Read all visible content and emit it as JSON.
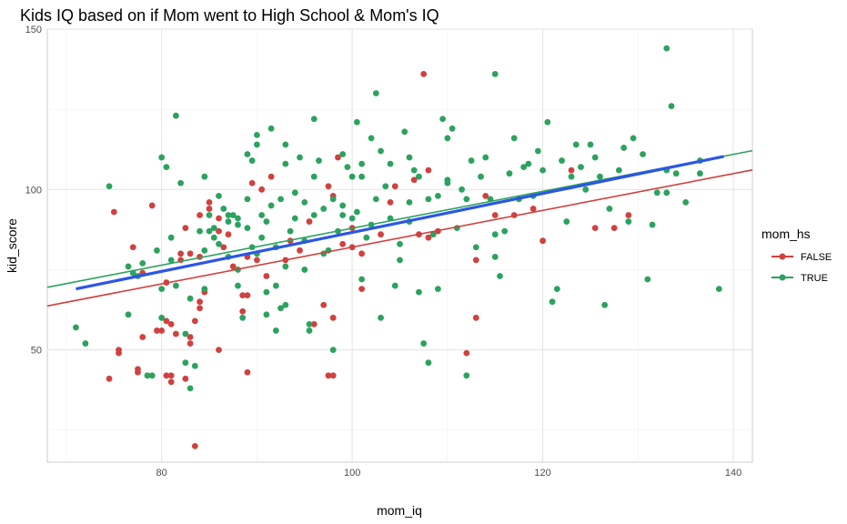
{
  "chart_data": {
    "type": "scatter",
    "title": "Kids IQ based on if Mom went to High School & Mom's IQ",
    "xlabel": "mom_iq",
    "ylabel": "kid_score",
    "xlim": [
      68,
      142
    ],
    "ylim": [
      15,
      150
    ],
    "x_ticks": [
      80,
      100,
      120,
      140
    ],
    "y_ticks": [
      50,
      100,
      150
    ],
    "x_tick_labels": [
      "80",
      "100",
      "120",
      "140"
    ],
    "y_tick_labels": [
      "50",
      "100",
      "150"
    ],
    "grid": true,
    "legend": {
      "title": "mom_hs",
      "placement": "right",
      "entries": [
        {
          "label": "FALSE",
          "color": "#d0413f"
        },
        {
          "label": "TRUE",
          "color": "#2ca25f"
        }
      ]
    },
    "series": [
      {
        "name": "FALSE",
        "color": "#d0413f",
        "points": [
          [
            74.5,
            41
          ],
          [
            75,
            93
          ],
          [
            75.5,
            50
          ],
          [
            75.5,
            49
          ],
          [
            77,
            82
          ],
          [
            77.5,
            44
          ],
          [
            77.5,
            43
          ],
          [
            78,
            54
          ],
          [
            78,
            74
          ],
          [
            79,
            95
          ],
          [
            79.5,
            56
          ],
          [
            80.5,
            42
          ],
          [
            80,
            56
          ],
          [
            80.5,
            59
          ],
          [
            81,
            58
          ],
          [
            81,
            40
          ],
          [
            81,
            42
          ],
          [
            80.5,
            71
          ],
          [
            81.5,
            55
          ],
          [
            82,
            78
          ],
          [
            82,
            80
          ],
          [
            82.5,
            88
          ],
          [
            83,
            80
          ],
          [
            83,
            54
          ],
          [
            83,
            52
          ],
          [
            82.5,
            41
          ],
          [
            83.5,
            59
          ],
          [
            84,
            63
          ],
          [
            84,
            65
          ],
          [
            84,
            79
          ],
          [
            84,
            92
          ],
          [
            84.5,
            68
          ],
          [
            85,
            94
          ],
          [
            85,
            96
          ],
          [
            83.5,
            20
          ],
          [
            86,
            91
          ],
          [
            86,
            87
          ],
          [
            86.5,
            82
          ],
          [
            86,
            50
          ],
          [
            87,
            86
          ],
          [
            87.5,
            76
          ],
          [
            88.5,
            67
          ],
          [
            89,
            67
          ],
          [
            88.5,
            62
          ],
          [
            89,
            43
          ],
          [
            89.5,
            102
          ],
          [
            89,
            79
          ],
          [
            90,
            78
          ],
          [
            90.5,
            100
          ],
          [
            91,
            73
          ],
          [
            91.5,
            104
          ],
          [
            93,
            78
          ],
          [
            93.5,
            84
          ],
          [
            94.5,
            81
          ],
          [
            95.5,
            90
          ],
          [
            96,
            58
          ],
          [
            97,
            64
          ],
          [
            97.5,
            101
          ],
          [
            97.5,
            42
          ],
          [
            98,
            42
          ],
          [
            98,
            98
          ],
          [
            98,
            60
          ],
          [
            98.5,
            110
          ],
          [
            99,
            83
          ],
          [
            100,
            88
          ],
          [
            100,
            82
          ],
          [
            101,
            80
          ],
          [
            101,
            69
          ],
          [
            103,
            86
          ],
          [
            104,
            96
          ],
          [
            104.5,
            101
          ],
          [
            106.5,
            103
          ],
          [
            107,
            86
          ],
          [
            107.5,
            136
          ],
          [
            108,
            106
          ],
          [
            108,
            85
          ],
          [
            109,
            87
          ],
          [
            112,
            49
          ],
          [
            113,
            60
          ],
          [
            113,
            78
          ],
          [
            114,
            98
          ],
          [
            115,
            92
          ],
          [
            117,
            92
          ],
          [
            119,
            94
          ],
          [
            120,
            84
          ],
          [
            123,
            106
          ],
          [
            125.5,
            88
          ],
          [
            127.5,
            88
          ],
          [
            129,
            92
          ]
        ]
      },
      {
        "name": "TRUE",
        "color": "#2ca25f",
        "points": [
          [
            71,
            57
          ],
          [
            72,
            52
          ],
          [
            74.5,
            101
          ],
          [
            76.5,
            76
          ],
          [
            76.5,
            61
          ],
          [
            77,
            74
          ],
          [
            77.5,
            73
          ],
          [
            78,
            77
          ],
          [
            78.5,
            42
          ],
          [
            79.5,
            81
          ],
          [
            79,
            42
          ],
          [
            80,
            110
          ],
          [
            80,
            60
          ],
          [
            80,
            69
          ],
          [
            80.5,
            107
          ],
          [
            81,
            85
          ],
          [
            81,
            78
          ],
          [
            81.5,
            123
          ],
          [
            82,
            102
          ],
          [
            81.5,
            70
          ],
          [
            82.5,
            46
          ],
          [
            82.5,
            55
          ],
          [
            83,
            38
          ],
          [
            83,
            66
          ],
          [
            83.5,
            45
          ],
          [
            84,
            87
          ],
          [
            84.5,
            104
          ],
          [
            84.5,
            81
          ],
          [
            84.5,
            69
          ],
          [
            85,
            87
          ],
          [
            85,
            92
          ],
          [
            85.5,
            88
          ],
          [
            85.5,
            85
          ],
          [
            86,
            98
          ],
          [
            86.5,
            94
          ],
          [
            86,
            83
          ],
          [
            87,
            90
          ],
          [
            87,
            92
          ],
          [
            87.5,
            92
          ],
          [
            87,
            79
          ],
          [
            88,
            91
          ],
          [
            88,
            89
          ],
          [
            88,
            75
          ],
          [
            88,
            70
          ],
          [
            88.5,
            60
          ],
          [
            89,
            111
          ],
          [
            89,
            97
          ],
          [
            89,
            88
          ],
          [
            89.5,
            109
          ],
          [
            89.5,
            82
          ],
          [
            90,
            114
          ],
          [
            90,
            117
          ],
          [
            90,
            80
          ],
          [
            90.5,
            92
          ],
          [
            90.5,
            85
          ],
          [
            91,
            90
          ],
          [
            91,
            68
          ],
          [
            91,
            61
          ],
          [
            91.5,
            95
          ],
          [
            91.5,
            119
          ],
          [
            92,
            82
          ],
          [
            92,
            70
          ],
          [
            92,
            56
          ],
          [
            92.5,
            63
          ],
          [
            92.5,
            97
          ],
          [
            93,
            114
          ],
          [
            93,
            108
          ],
          [
            93,
            76
          ],
          [
            93,
            64
          ],
          [
            93.5,
            87
          ],
          [
            94,
            91
          ],
          [
            94,
            99
          ],
          [
            94.5,
            110
          ],
          [
            95,
            96
          ],
          [
            95,
            84
          ],
          [
            95,
            75
          ],
          [
            95.5,
            56
          ],
          [
            95.5,
            58
          ],
          [
            96,
            122
          ],
          [
            96,
            92
          ],
          [
            96,
            104
          ],
          [
            96.5,
            109
          ],
          [
            97,
            94
          ],
          [
            97,
            80
          ],
          [
            97.5,
            81
          ],
          [
            98,
            97
          ],
          [
            98,
            50
          ],
          [
            98.5,
            87
          ],
          [
            99,
            111
          ],
          [
            99,
            92
          ],
          [
            99,
            95
          ],
          [
            99.5,
            107
          ],
          [
            100,
            91
          ],
          [
            100,
            104
          ],
          [
            100.5,
            93
          ],
          [
            100.5,
            121
          ],
          [
            101,
            108
          ],
          [
            101,
            104
          ],
          [
            101,
            72
          ],
          [
            101.5,
            85
          ],
          [
            102,
            89
          ],
          [
            102,
            116
          ],
          [
            102.5,
            130
          ],
          [
            102.5,
            97
          ],
          [
            103,
            112
          ],
          [
            103,
            60
          ],
          [
            103.5,
            101
          ],
          [
            104,
            91
          ],
          [
            104,
            108
          ],
          [
            104.5,
            70
          ],
          [
            105,
            83
          ],
          [
            105,
            78
          ],
          [
            105.5,
            118
          ],
          [
            106,
            110
          ],
          [
            106,
            90
          ],
          [
            106,
            96
          ],
          [
            106.5,
            106
          ],
          [
            107,
            68
          ],
          [
            107,
            104
          ],
          [
            107.5,
            52
          ],
          [
            108,
            97
          ],
          [
            108,
            46
          ],
          [
            108.5,
            86
          ],
          [
            109,
            98
          ],
          [
            109,
            69
          ],
          [
            109.5,
            122
          ],
          [
            110,
            116
          ],
          [
            110,
            102
          ],
          [
            110,
            103
          ],
          [
            110.5,
            119
          ],
          [
            111,
            88
          ],
          [
            111.5,
            100
          ],
          [
            112,
            97
          ],
          [
            112,
            42
          ],
          [
            112.5,
            109
          ],
          [
            113,
            82
          ],
          [
            113.5,
            104
          ],
          [
            114,
            110
          ],
          [
            114.5,
            97
          ],
          [
            115,
            136
          ],
          [
            115,
            86
          ],
          [
            115,
            79
          ],
          [
            115.5,
            73
          ],
          [
            116,
            87
          ],
          [
            116.5,
            105
          ],
          [
            117,
            116
          ],
          [
            117.5,
            97
          ],
          [
            118,
            107
          ],
          [
            118.5,
            108
          ],
          [
            119,
            98
          ],
          [
            119.5,
            112
          ],
          [
            120,
            106
          ],
          [
            120.5,
            121
          ],
          [
            121,
            65
          ],
          [
            121.5,
            69
          ],
          [
            122,
            109
          ],
          [
            122.5,
            90
          ],
          [
            123,
            104
          ],
          [
            123.5,
            114
          ],
          [
            124,
            107
          ],
          [
            124.5,
            100
          ],
          [
            125,
            114
          ],
          [
            125.5,
            110
          ],
          [
            126,
            104
          ],
          [
            126.5,
            64
          ],
          [
            127,
            94
          ],
          [
            128,
            106
          ],
          [
            128.5,
            113
          ],
          [
            129,
            90
          ],
          [
            129.5,
            116
          ],
          [
            130.5,
            111
          ],
          [
            131,
            72
          ],
          [
            131.5,
            89
          ],
          [
            132,
            99
          ],
          [
            133,
            106
          ],
          [
            133,
            99
          ],
          [
            133,
            144
          ],
          [
            133.5,
            126
          ],
          [
            134,
            105
          ],
          [
            135,
            96
          ],
          [
            136.5,
            109
          ],
          [
            136.5,
            105
          ],
          [
            138.5,
            69
          ]
        ]
      }
    ],
    "lines": [
      {
        "series": "FALSE",
        "color": "#d0413f",
        "x": [
          68,
          142
        ],
        "y": [
          63.7,
          106.1
        ]
      },
      {
        "series": "TRUE",
        "color": "#2ca25f",
        "x": [
          68,
          142
        ],
        "y": [
          69.5,
          112.1
        ]
      },
      {
        "series": "overall",
        "color": "#2b56e6",
        "x": [
          71,
          139
        ],
        "y": [
          69,
          110.3
        ]
      }
    ]
  }
}
